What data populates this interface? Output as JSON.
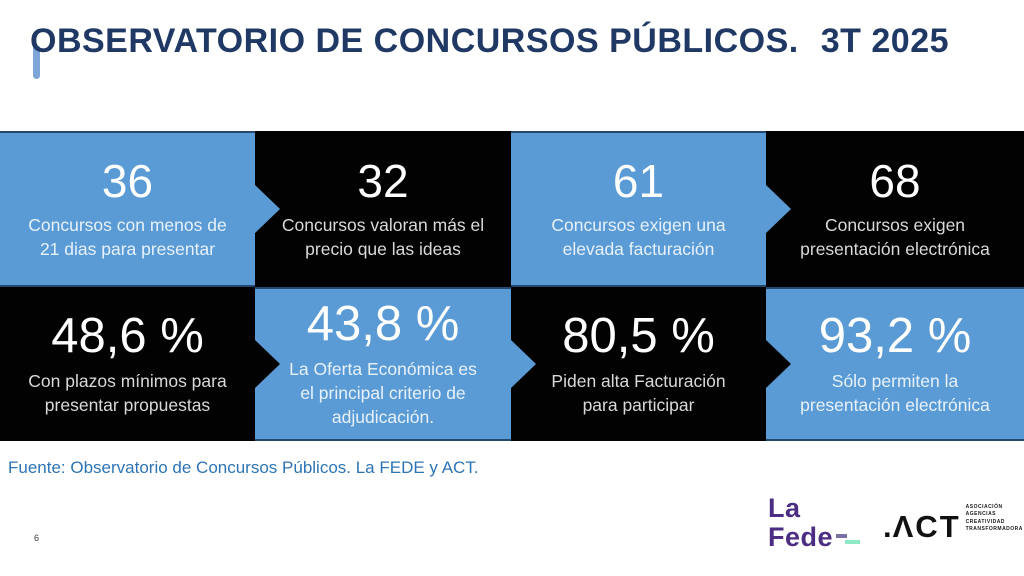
{
  "title": {
    "main": "OBSERVATORIO DE CONCURSOS PÚBLICOS.",
    "period": "3T 2025"
  },
  "blocks": [
    {
      "value": "36",
      "label": "Concursos con menos de 21 dias para presentar",
      "theme": "blue",
      "arrow": true
    },
    {
      "value": "32",
      "label": "Concursos valoran más el precio que las ideas",
      "theme": "black",
      "arrow": false
    },
    {
      "value": "61",
      "label": "Concursos exigen una elevada facturación",
      "theme": "blue",
      "arrow": true
    },
    {
      "value": "68",
      "label": "Concursos exigen presentación electrónica",
      "theme": "black",
      "arrow": false
    },
    {
      "value": "48,6 %",
      "label": "Con plazos mínimos para presentar propuestas",
      "theme": "black",
      "arrow": true
    },
    {
      "value": "43,8 %",
      "label": "La Oferta Económica es el principal criterio de adjudicación.",
      "theme": "blue",
      "arrow": true
    },
    {
      "value": "80,5 %",
      "label": "Piden alta Facturación para participar",
      "theme": "black",
      "arrow": true
    },
    {
      "value": "93,2 %",
      "label": "Sólo permiten la presentación electrónica",
      "theme": "blue",
      "arrow": false
    }
  ],
  "footer": {
    "source": "Fuente: Observatorio de Concursos Públicos. La FEDE y ACT.",
    "page_number": "6"
  },
  "logos": {
    "lafede": {
      "line1": "La",
      "line2": "Fede"
    },
    "act": {
      "dot": ".",
      "wordmark": "ΛCT",
      "tagline": [
        "ASOCIACIÓN",
        "AGENCIAS",
        "CREATIVIDAD",
        "TRANSFORMADORA"
      ]
    }
  },
  "colors": {
    "accent_blue": "#5B9BD5",
    "block_black": "#020202",
    "title_navy": "#1F3864",
    "title_mark_blue": "#7EA6D8",
    "source_text_blue": "#2E74B5",
    "lafede_purple": "#4B2E83",
    "lafede_mint": "#8FE9C5"
  }
}
